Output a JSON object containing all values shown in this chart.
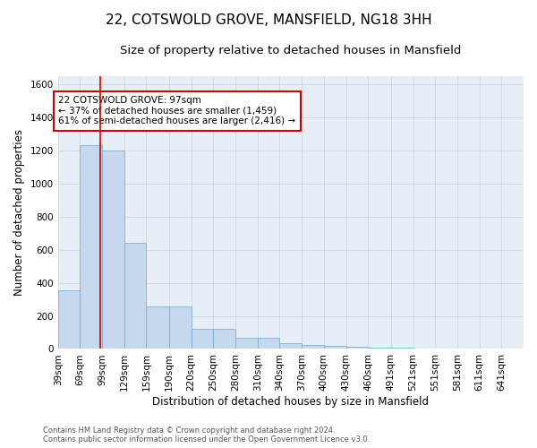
{
  "title": "22, COTSWOLD GROVE, MANSFIELD, NG18 3HH",
  "subtitle": "Size of property relative to detached houses in Mansfield",
  "xlabel": "Distribution of detached houses by size in Mansfield",
  "ylabel": "Number of detached properties",
  "footer1": "Contains HM Land Registry data © Crown copyright and database right 2024.",
  "footer2": "Contains public sector information licensed under the Open Government Licence v3.0.",
  "annotation_line1": "22 COTSWOLD GROVE: 97sqm",
  "annotation_line2": "← 37% of detached houses are smaller (1,459)",
  "annotation_line3": "61% of semi-detached houses are larger (2,416) →",
  "property_size": 97,
  "bins_left": [
    39,
    69,
    99,
    129,
    159,
    190,
    220,
    250,
    280,
    310,
    340,
    370,
    400,
    430,
    460,
    491,
    521,
    551,
    581,
    611,
    641
  ],
  "values": [
    355,
    1230,
    1200,
    640,
    255,
    255,
    120,
    120,
    65,
    65,
    35,
    25,
    20,
    15,
    10,
    10,
    5,
    5,
    5,
    5,
    0
  ],
  "bar_color": "#c5d8ed",
  "bar_edge_color": "#6aaad4",
  "red_line_color": "#cc0000",
  "ylim": [
    0,
    1650
  ],
  "yticks": [
    0,
    200,
    400,
    600,
    800,
    1000,
    1200,
    1400,
    1600
  ],
  "background_color": "#ffffff",
  "plot_bg_color": "#e8eef5",
  "grid_color": "#c8d4e0",
  "annotation_box_color": "#ffffff",
  "annotation_box_edge": "#cc0000",
  "title_fontsize": 11,
  "subtitle_fontsize": 9.5,
  "axis_label_fontsize": 8.5,
  "tick_fontsize": 7.5,
  "annotation_fontsize": 7.5,
  "footer_fontsize": 6
}
